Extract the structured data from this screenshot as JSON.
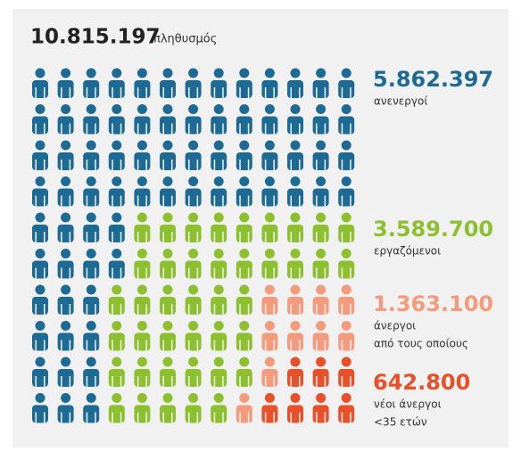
{
  "header": {
    "value": "10.815.197",
    "label": "πληθυσμός"
  },
  "groups": [
    {
      "value": "5.862.397",
      "label": [
        "ανενεργοί"
      ]
    },
    {
      "value": "3.589.700",
      "label": [
        "εργαζόμενοι"
      ]
    },
    {
      "value": "1.363.100",
      "label": [
        "άνεργοι",
        "από τους οποίους"
      ]
    },
    {
      "value": "642.800",
      "label": [
        "νέοι άνεργοι",
        "<35 ετών"
      ]
    }
  ]
}
